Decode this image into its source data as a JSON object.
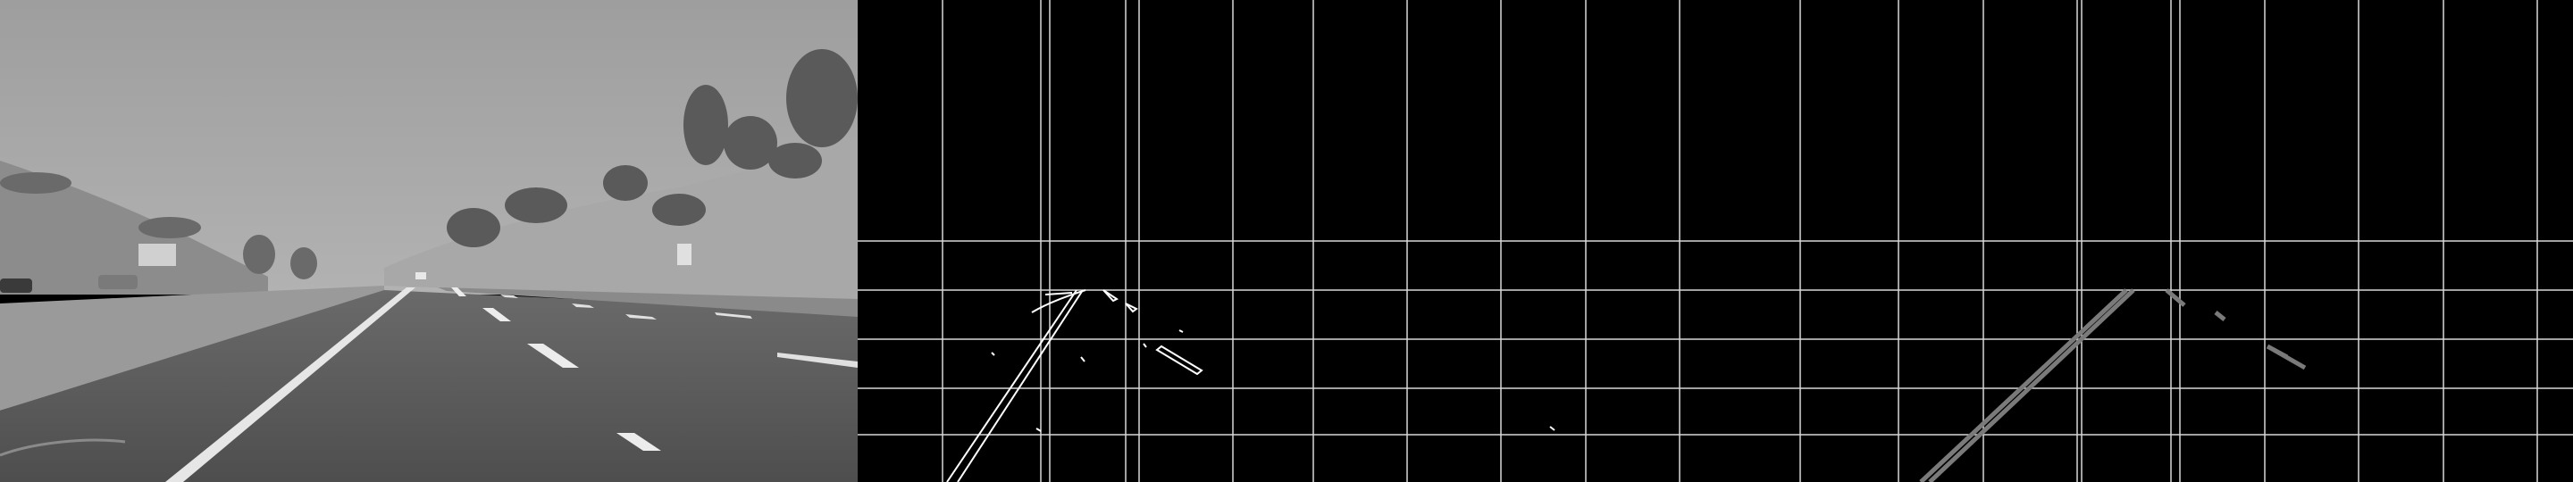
{
  "panels": [
    {
      "name": "grayscale-road-image",
      "kind": "photo"
    },
    {
      "name": "canny-edges-with-grid",
      "kind": "edges"
    },
    {
      "name": "hough-lines-with-grid",
      "kind": "lines"
    }
  ],
  "colors": {
    "background": "#000000",
    "grid": "#d8d8d8",
    "edges": "#ffffff",
    "hough_lines": "#7a7a7a",
    "sky": "#9a9a9a",
    "road": "#585858"
  }
}
